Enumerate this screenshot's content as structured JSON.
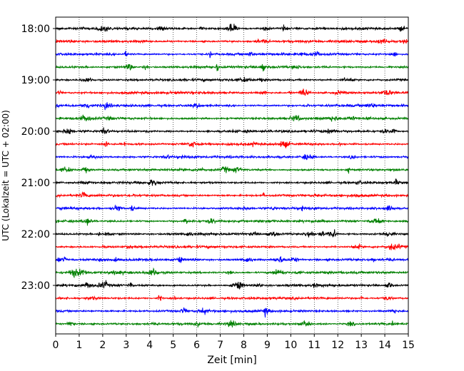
{
  "chart_data": {
    "type": "line",
    "title": "",
    "xlabel": "Zeit  [min]",
    "ylabel": "UTC (Lokalzeit = UTC + 02:00)",
    "xlim": [
      0,
      15
    ],
    "x_ticks": [
      "0",
      "1",
      "2",
      "3",
      "4",
      "5",
      "6",
      "7",
      "8",
      "9",
      "10",
      "11",
      "12",
      "13",
      "14",
      "15"
    ],
    "y_ticks": [
      "18:00",
      "19:00",
      "20:00",
      "21:00",
      "22:00",
      "23:00"
    ],
    "row_interval_minutes": 15,
    "start_time": "18:00",
    "trace_count": 24,
    "trace_colors": [
      "#000000",
      "#ff0000",
      "#0000ff",
      "#008000"
    ],
    "grid": "vertical dotted"
  }
}
